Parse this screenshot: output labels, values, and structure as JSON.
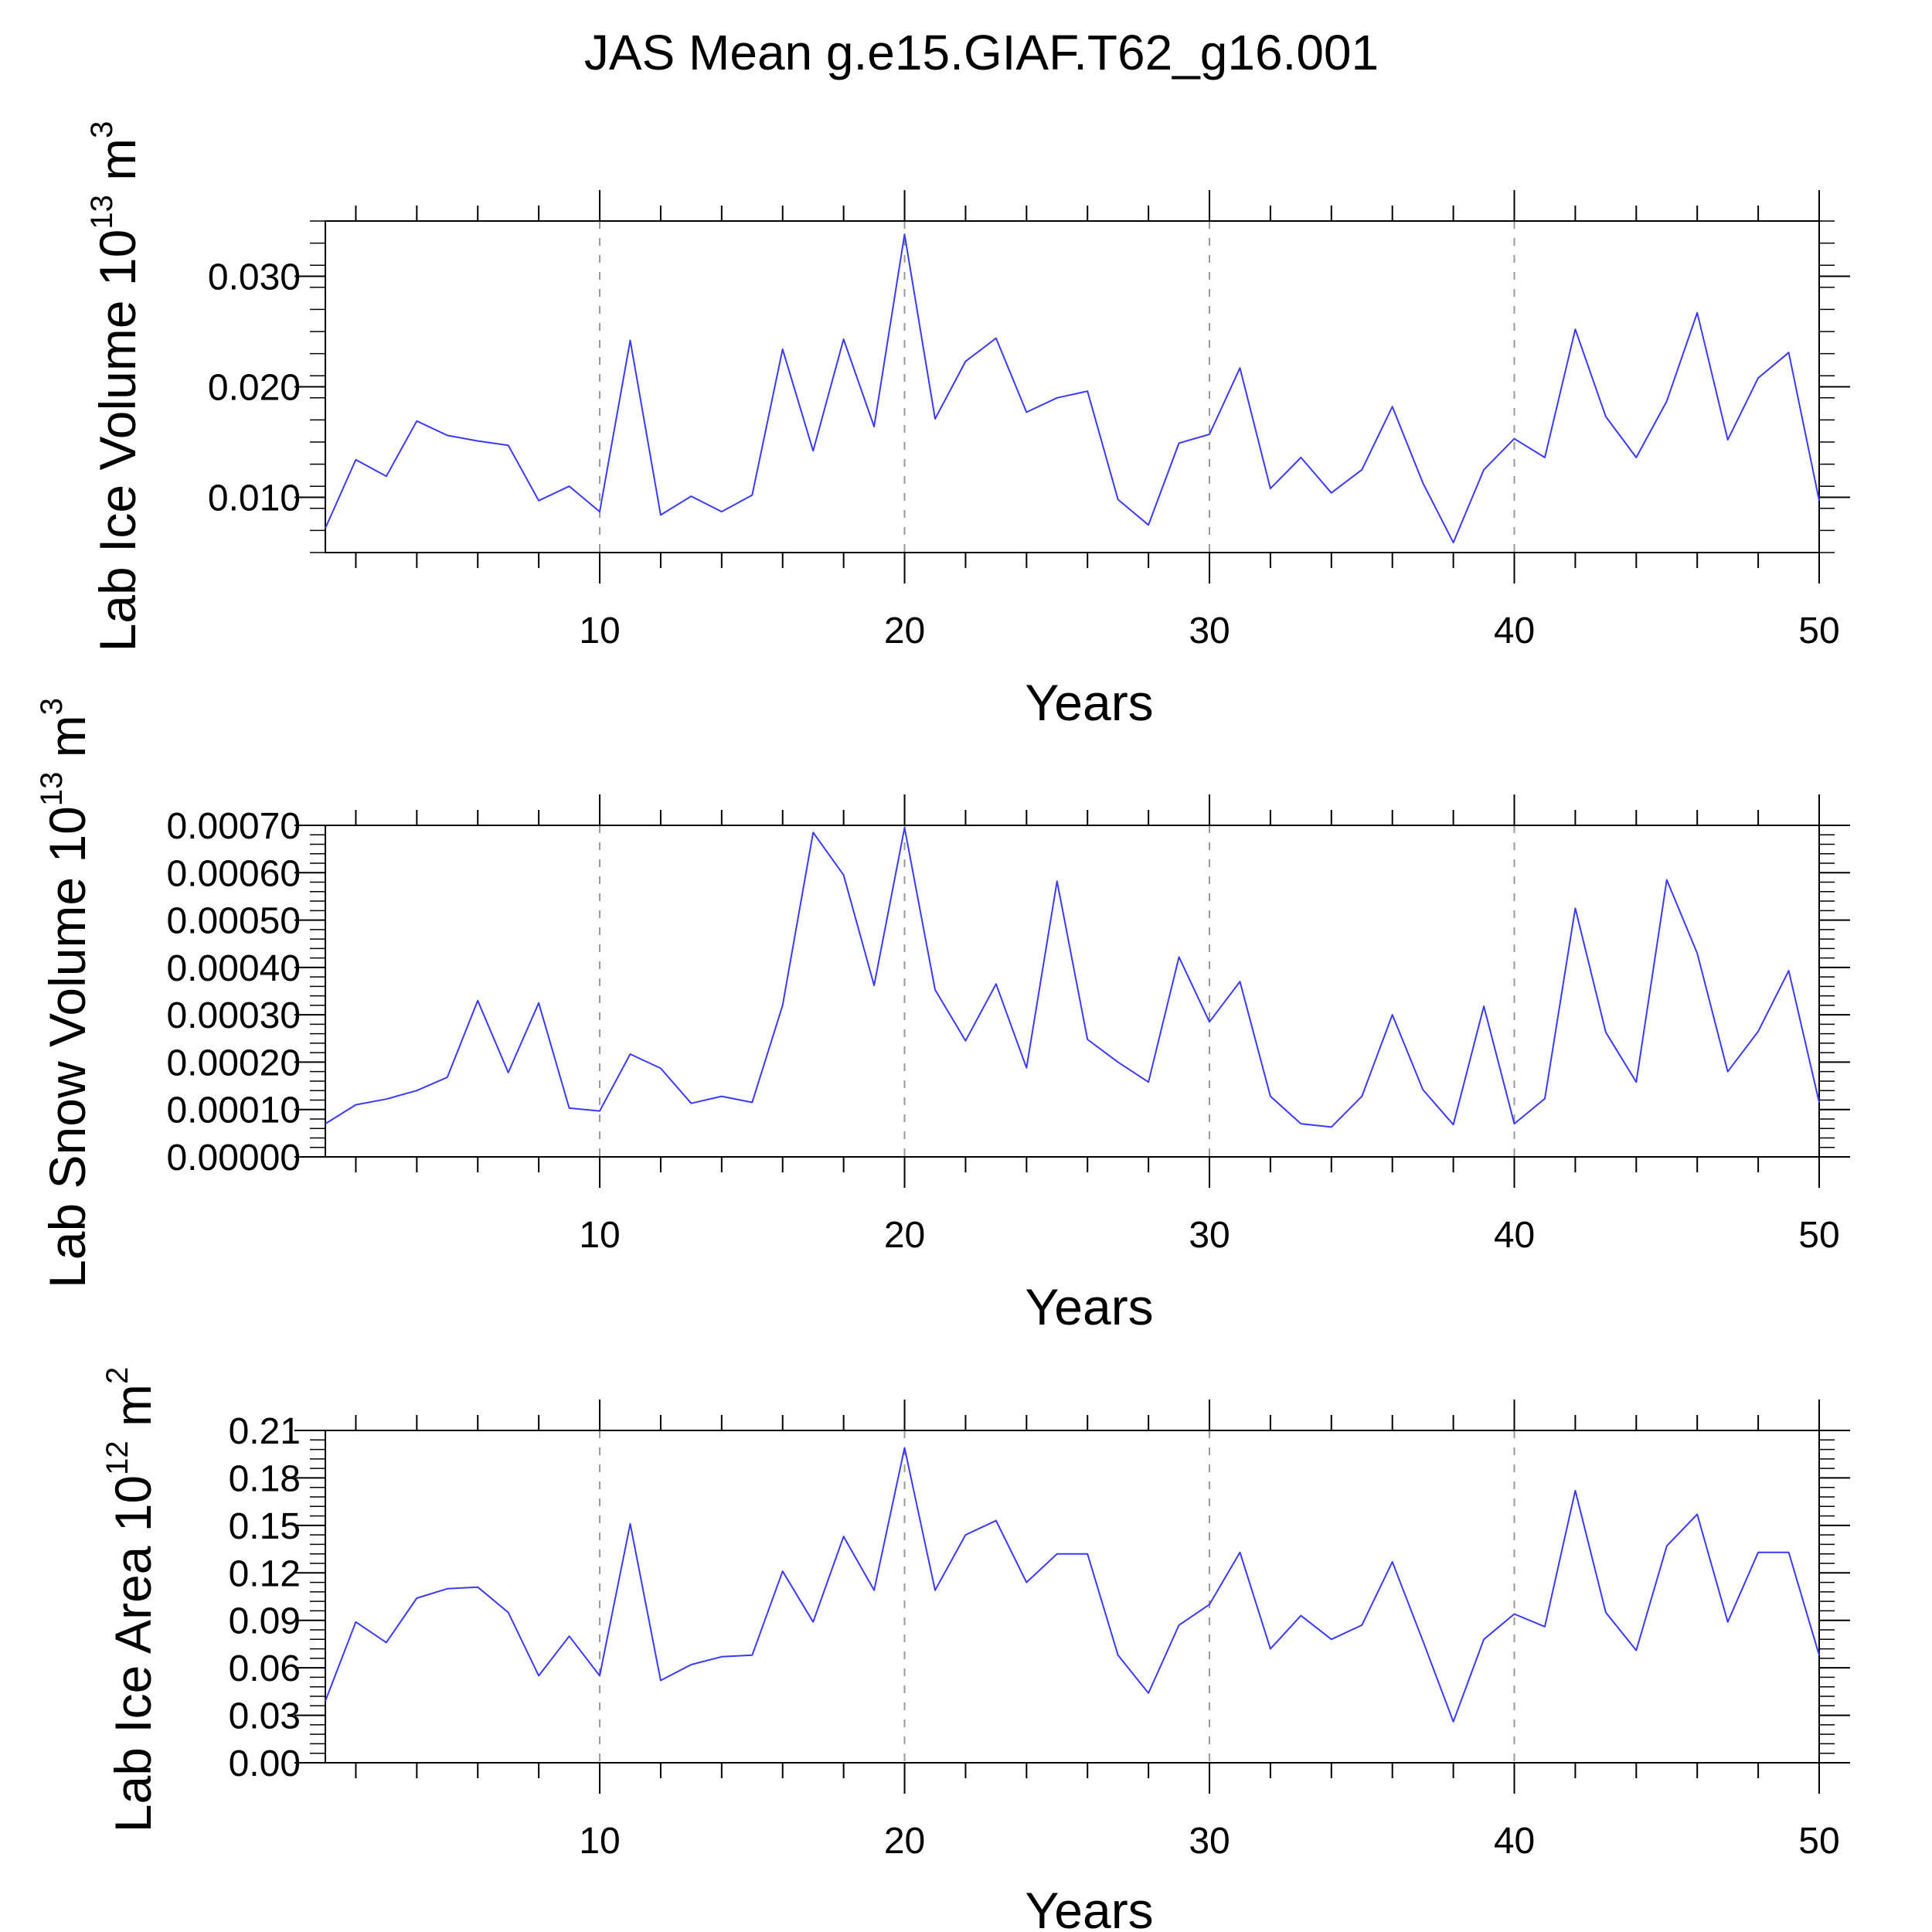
{
  "title": "JAS Mean g.e15.GIAF.T62_g16.001",
  "colors": {
    "line": "#3a3aff",
    "axis": "#000000",
    "grid": "#999999"
  },
  "chart_data": [
    {
      "type": "line",
      "ylabel_main": "Lab Ice Volume 10",
      "ylabel_exp": "13",
      "ylabel_unit": " m",
      "ylabel_unit_exp": "3",
      "xlabel": "Years",
      "xlim": [
        1,
        50
      ],
      "ylim": [
        0.005,
        0.035
      ],
      "xticks": [
        10,
        20,
        30,
        40,
        50
      ],
      "xtick_labels": [
        "10",
        "20",
        "30",
        "40",
        "50"
      ],
      "yticks": [
        0.01,
        0.02,
        0.03
      ],
      "ytick_labels": [
        "0.010",
        "0.020",
        "0.030"
      ],
      "ytick_minor_step": 0.002,
      "x": [
        1,
        2,
        3,
        4,
        5,
        6,
        7,
        8,
        9,
        10,
        11,
        12,
        13,
        14,
        15,
        16,
        17,
        18,
        19,
        20,
        21,
        22,
        23,
        24,
        25,
        26,
        27,
        28,
        29,
        30,
        31,
        32,
        33,
        34,
        35,
        36,
        37,
        38,
        39,
        40,
        41,
        42,
        43,
        44,
        45,
        46,
        47,
        48,
        49,
        50
      ],
      "values": [
        0.0072,
        0.0134,
        0.0119,
        0.0169,
        0.0156,
        0.0151,
        0.0147,
        0.0097,
        0.011,
        0.0087,
        0.0242,
        0.0084,
        0.0101,
        0.0087,
        0.0102,
        0.0234,
        0.0142,
        0.0243,
        0.0164,
        0.0338,
        0.0171,
        0.0223,
        0.0244,
        0.0177,
        0.019,
        0.0196,
        0.0098,
        0.0075,
        0.0149,
        0.0157,
        0.0217,
        0.0108,
        0.0136,
        0.0104,
        0.0125,
        0.0182,
        0.0113,
        0.0059,
        0.0125,
        0.0153,
        0.0136,
        0.0252,
        0.0173,
        0.0136,
        0.0187,
        0.0267,
        0.0152,
        0.0208,
        0.0231,
        0.0097
      ]
    },
    {
      "type": "line",
      "ylabel_main": "Lab Snow Volume 10",
      "ylabel_exp": "13",
      "ylabel_unit": " m",
      "ylabel_unit_exp": "3",
      "xlabel": "Years",
      "xlim": [
        1,
        50
      ],
      "ylim": [
        0,
        0.0007
      ],
      "xticks": [
        10,
        20,
        30,
        40,
        50
      ],
      "xtick_labels": [
        "10",
        "20",
        "30",
        "40",
        "50"
      ],
      "yticks": [
        0,
        0.0001,
        0.0002,
        0.0003,
        0.0004,
        0.0005,
        0.0006,
        0.0007
      ],
      "ytick_labels": [
        "0.00000",
        "0.00010",
        "0.00020",
        "0.00030",
        "0.00040",
        "0.00050",
        "0.00060",
        "0.00070"
      ],
      "ytick_minor_step": 2e-05,
      "x": [
        1,
        2,
        3,
        4,
        5,
        6,
        7,
        8,
        9,
        10,
        11,
        12,
        13,
        14,
        15,
        16,
        17,
        18,
        19,
        20,
        21,
        22,
        23,
        24,
        25,
        26,
        27,
        28,
        29,
        30,
        31,
        32,
        33,
        34,
        35,
        36,
        37,
        38,
        39,
        40,
        41,
        42,
        43,
        44,
        45,
        46,
        47,
        48,
        49,
        50
      ],
      "values": [
        7e-05,
        0.00011,
        0.000122,
        0.00014,
        0.000168,
        0.00033,
        0.000178,
        0.000325,
        0.000103,
        9.7e-05,
        0.000217,
        0.000187,
        0.000113,
        0.000128,
        0.000115,
        0.00032,
        0.000685,
        0.000595,
        0.000362,
        0.000695,
        0.000353,
        0.000245,
        0.000365,
        0.000188,
        0.000582,
        0.000248,
        0.0002,
        0.000158,
        0.000422,
        0.000285,
        0.00037,
        0.000128,
        7e-05,
        6.3e-05,
        0.000128,
        0.0003,
        0.000142,
        6.8e-05,
        0.000318,
        7e-05,
        0.000123,
        0.000525,
        0.000263,
        0.000158,
        0.000585,
        0.00043,
        0.00018,
        0.000265,
        0.000393,
        0.000115
      ]
    },
    {
      "type": "line",
      "ylabel_main": "Lab Ice Area 10",
      "ylabel_exp": "12",
      "ylabel_unit": " m",
      "ylabel_unit_exp": "2",
      "xlabel": "Years",
      "xlim": [
        1,
        50
      ],
      "ylim": [
        0,
        0.21
      ],
      "xticks": [
        10,
        20,
        30,
        40,
        50
      ],
      "xtick_labels": [
        "10",
        "20",
        "30",
        "40",
        "50"
      ],
      "yticks": [
        0,
        0.03,
        0.06,
        0.09,
        0.12,
        0.15,
        0.18,
        0.21
      ],
      "ytick_labels": [
        "0.00",
        "0.03",
        "0.06",
        "0.09",
        "0.12",
        "0.15",
        "0.18",
        "0.21"
      ],
      "ytick_minor_step": 0.006,
      "x": [
        1,
        2,
        3,
        4,
        5,
        6,
        7,
        8,
        9,
        10,
        11,
        12,
        13,
        14,
        15,
        16,
        17,
        18,
        19,
        20,
        21,
        22,
        23,
        24,
        25,
        26,
        27,
        28,
        29,
        30,
        31,
        32,
        33,
        34,
        35,
        36,
        37,
        38,
        39,
        40,
        41,
        42,
        43,
        44,
        45,
        46,
        47,
        48,
        49,
        50
      ],
      "values": [
        0.039,
        0.089,
        0.076,
        0.104,
        0.11,
        0.111,
        0.095,
        0.055,
        0.08,
        0.055,
        0.151,
        0.052,
        0.062,
        0.067,
        0.068,
        0.121,
        0.089,
        0.143,
        0.109,
        0.199,
        0.109,
        0.144,
        0.153,
        0.114,
        0.132,
        0.132,
        0.068,
        0.044,
        0.087,
        0.1,
        0.133,
        0.072,
        0.093,
        0.078,
        0.087,
        0.127,
        0.077,
        0.026,
        0.078,
        0.094,
        0.086,
        0.172,
        0.095,
        0.071,
        0.137,
        0.157,
        0.089,
        0.133,
        0.133,
        0.068
      ]
    }
  ]
}
